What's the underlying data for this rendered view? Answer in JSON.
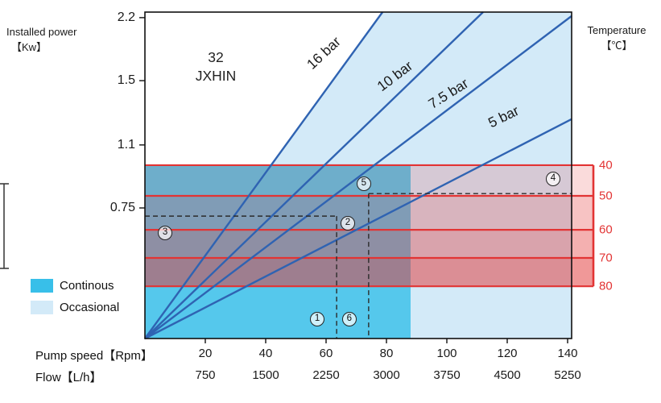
{
  "chart_data": {
    "type": "line",
    "title": {
      "line1": "32",
      "line2": "JXHIN"
    },
    "x_axis": {
      "label": "Pump speed【Rpm】",
      "ticks": [
        20,
        40,
        60,
        80,
        100,
        120,
        140
      ],
      "rpm_max": 141.33
    },
    "x_axis_secondary": {
      "label": "Flow【L/h】",
      "ticks": [
        750,
        1500,
        2250,
        3000,
        3750,
        4500,
        5250
      ]
    },
    "y_axis_left": {
      "label_line1": "Installed power",
      "label_line2": "【Kw】",
      "ticks": [
        {
          "value": "2.2",
          "pos": 0.017
        },
        {
          "value": "1.5",
          "pos": 0.21
        },
        {
          "value": "1.1",
          "pos": 0.407
        },
        {
          "value": "0.75",
          "pos": 0.6
        }
      ]
    },
    "y_axis_right": {
      "label_line1": "Temperature",
      "label_line2": "【℃】",
      "color": "#e23434",
      "ticks": [
        {
          "value": "40",
          "pos": 0.469
        },
        {
          "value": "50",
          "pos": 0.563
        },
        {
          "value": "60",
          "pos": 0.667
        },
        {
          "value": "70",
          "pos": 0.753
        },
        {
          "value": "80",
          "pos": 0.84
        }
      ]
    },
    "band_color": "227,57,57",
    "band_alphas": [
      0.18,
      0.3,
      0.4,
      0.52
    ],
    "series_color": "#2f63b2",
    "series": [
      {
        "name": "16 bar",
        "end_rpm": 78.7,
        "end_pos": 0
      },
      {
        "name": "10 bar",
        "end_rpm": 112.0,
        "end_pos": 0
      },
      {
        "name": "7.5 bar",
        "end_rpm": 141.33,
        "end_pos": 0.012
      },
      {
        "name": "5 bar",
        "end_rpm": 141.33,
        "end_pos": 0.328
      }
    ],
    "regions": {
      "continous": {
        "label": "Continous",
        "color": "#55c8ec",
        "swatch": "#38bfe9",
        "x_to_rpm": 88,
        "y_from_pos": 0.469
      },
      "occasional": {
        "label": "Occasional",
        "color": "#d3eaf8",
        "swatch": "#d3eaf8",
        "line_top_rpm": 78.7
      }
    },
    "dashed_lines": [
      {
        "type": "v",
        "rpm": 63.5,
        "from_pos": 0.625,
        "to_pos": 1
      },
      {
        "type": "v",
        "rpm": 74.1,
        "from_pos": 0.556,
        "to_pos": 1
      },
      {
        "type": "h",
        "pos": 0.625,
        "from_rpm": 0,
        "to_rpm": 63.5
      },
      {
        "type": "h",
        "pos": 0.556,
        "from_rpm": 74.1,
        "to_rpm": 141.33
      }
    ],
    "annotations": [
      {
        "n": "1",
        "rpm": 57.1,
        "pos": 0.941
      },
      {
        "n": "2",
        "rpm": 67.2,
        "pos": 0.647
      },
      {
        "n": "3",
        "rpm": 6.7,
        "pos": 0.677
      },
      {
        "n": "4",
        "rpm": 135.2,
        "pos": 0.511
      },
      {
        "n": "5",
        "rpm": 72.5,
        "pos": 0.526
      },
      {
        "n": "6",
        "rpm": 67.7,
        "pos": 0.941
      }
    ]
  }
}
